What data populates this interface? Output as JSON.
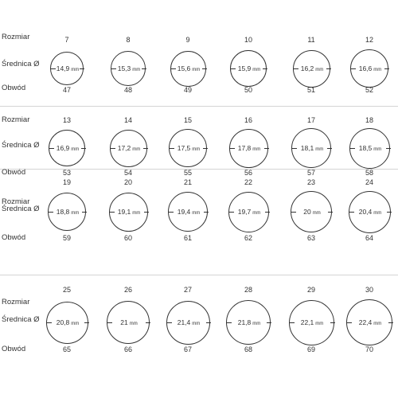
{
  "labels": {
    "size": "Rozmiar",
    "diameter": "Średnica Ø",
    "circumference": "Obwód",
    "unit": "mm"
  },
  "rows": [
    {
      "items": [
        {
          "size": "7",
          "diameter": "14,9",
          "circumference": "47"
        },
        {
          "size": "8",
          "diameter": "15,3",
          "circumference": "48"
        },
        {
          "size": "9",
          "diameter": "15,6",
          "circumference": "49"
        },
        {
          "size": "10",
          "diameter": "15,9",
          "circumference": "50"
        },
        {
          "size": "11",
          "diameter": "16,2",
          "circumference": "51"
        },
        {
          "size": "12",
          "diameter": "16,6",
          "circumference": "52"
        }
      ]
    },
    {
      "items": [
        {
          "size": "13",
          "diameter": "16,9",
          "circumference": "53"
        },
        {
          "size": "14",
          "diameter": "17,2",
          "circumference": "54"
        },
        {
          "size": "15",
          "diameter": "17,5",
          "circumference": "55"
        },
        {
          "size": "16",
          "diameter": "17,8",
          "circumference": "56"
        },
        {
          "size": "17",
          "diameter": "18,1",
          "circumference": "57"
        },
        {
          "size": "18",
          "diameter": "18,5",
          "circumference": "58"
        }
      ]
    },
    {
      "items": [
        {
          "size": "19",
          "diameter": "18,8",
          "circumference": "59"
        },
        {
          "size": "20",
          "diameter": "19,1",
          "circumference": "60"
        },
        {
          "size": "21",
          "diameter": "19,4",
          "circumference": "61"
        },
        {
          "size": "22",
          "diameter": "19,7",
          "circumference": "62"
        },
        {
          "size": "23",
          "diameter": "20",
          "circumference": "63"
        },
        {
          "size": "24",
          "diameter": "20,4",
          "circumference": "64"
        }
      ]
    },
    {
      "items": [
        {
          "size": "25",
          "diameter": "20,8",
          "circumference": "65"
        },
        {
          "size": "26",
          "diameter": "21",
          "circumference": "66"
        },
        {
          "size": "27",
          "diameter": "21,4",
          "circumference": "67"
        },
        {
          "size": "28",
          "diameter": "21,8",
          "circumference": "68"
        },
        {
          "size": "29",
          "diameter": "22,1",
          "circumference": "69"
        },
        {
          "size": "30",
          "diameter": "22,4",
          "circumference": "70"
        }
      ]
    }
  ]
}
